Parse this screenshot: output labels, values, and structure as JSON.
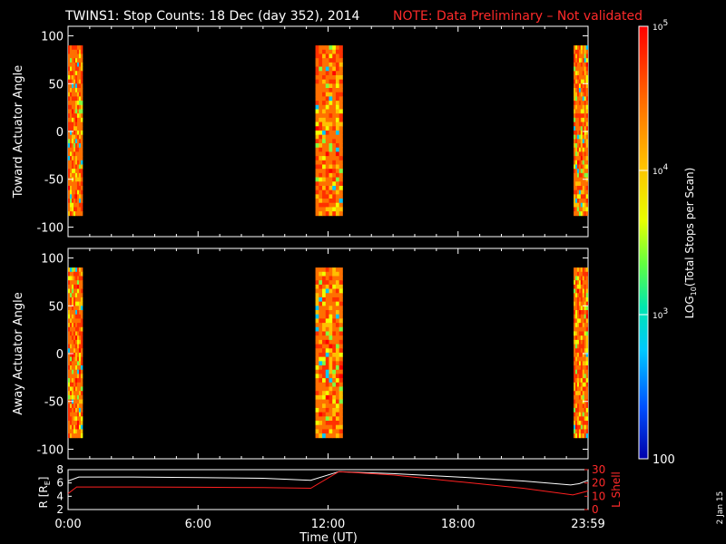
{
  "header": {
    "title": "TWINS1: Stop Counts: 18 Dec (day 352), 2014",
    "note": "NOTE: Data Preliminary – Not validated",
    "note_color": "#ff2a2a"
  },
  "side_stamp": "2 Jan 15",
  "chart_data": [
    {
      "type": "heatmap",
      "ylabel": "Toward Actuator Angle",
      "ylim": [
        -110,
        110
      ],
      "yticks": [
        -100,
        -50,
        0,
        50,
        100
      ],
      "xlim": [
        0,
        24
      ],
      "grid": false,
      "data_blocks": [
        {
          "x_start": "0:00",
          "x_end": "0:40",
          "angle_range": [
            -88,
            90
          ]
        },
        {
          "x_start": "11:25",
          "x_end": "12:40",
          "angle_range": [
            -88,
            90
          ]
        },
        {
          "x_start": "23:20",
          "x_end": "23:59",
          "angle_range": [
            -88,
            90
          ]
        }
      ],
      "dominant_level": "~5e4 (orange-red)"
    },
    {
      "type": "heatmap",
      "ylabel": "Away Actuator Angle",
      "ylim": [
        -110,
        110
      ],
      "yticks": [
        -100,
        -50,
        0,
        50,
        100
      ],
      "xlim": [
        0,
        24
      ],
      "grid": false,
      "data_blocks": [
        {
          "x_start": "0:00",
          "x_end": "0:40",
          "angle_range": [
            -88,
            90
          ]
        },
        {
          "x_start": "11:25",
          "x_end": "12:40",
          "angle_range": [
            -88,
            90
          ]
        },
        {
          "x_start": "23:20",
          "x_end": "23:59",
          "angle_range": [
            -88,
            90
          ]
        }
      ],
      "dominant_level": "~5e4 (orange-red)"
    },
    {
      "type": "line",
      "ylabel_left": "R [R",
      "ylabel_left_sub": "E",
      "ylabel_left_close": "]",
      "ylim_left": [
        2,
        8
      ],
      "yticks_left": [
        2,
        4,
        6,
        8
      ],
      "ylabel_right": "L Shell",
      "ylim_right": [
        0,
        30
      ],
      "yticks_right": [
        0,
        10,
        20,
        30
      ],
      "xlabel": "Time (UT)",
      "xticks": [
        "0:00",
        "6:00",
        "12:00",
        "18:00",
        "23:59"
      ],
      "xtick_hours": [
        0,
        6,
        12,
        18,
        24
      ],
      "series": [
        {
          "axis": "left",
          "color": "#ffffff",
          "x": [
            0,
            0.5,
            3,
            6,
            9,
            11.2,
            12.5,
            15,
            18,
            21,
            23.2,
            23.6,
            24
          ],
          "y": [
            6.3,
            6.9,
            6.9,
            6.8,
            6.7,
            6.4,
            7.7,
            7.4,
            6.9,
            6.3,
            5.7,
            5.9,
            6.4
          ]
        },
        {
          "axis": "right",
          "color": "#ff2020",
          "x": [
            0,
            0.4,
            3,
            6,
            9,
            11.2,
            12.5,
            15,
            18,
            21,
            23.3,
            24
          ],
          "y": [
            12,
            17,
            17,
            16.8,
            16.5,
            16,
            28.5,
            26,
            21,
            16,
            11,
            14
          ]
        }
      ]
    }
  ],
  "colorbar": {
    "label_main": "LOG",
    "label_sub": "10",
    "label_rest": "(Total Stops per Scan)",
    "ticks": [
      {
        "base": "10",
        "exp": "5",
        "value": 100000
      },
      {
        "base": "10",
        "exp": "4",
        "value": 10000
      },
      {
        "base": "10",
        "exp": "3",
        "value": 1000
      },
      {
        "base": "100",
        "exp": "",
        "value": 100
      }
    ],
    "scale": "log",
    "range": [
      100,
      100000
    ],
    "colors": [
      "#0000aa",
      "#0060ff",
      "#00c8ff",
      "#00e0a0",
      "#80ff40",
      "#f0ff00",
      "#ffc000",
      "#ff7000",
      "#ff3000",
      "#ff0000"
    ]
  }
}
